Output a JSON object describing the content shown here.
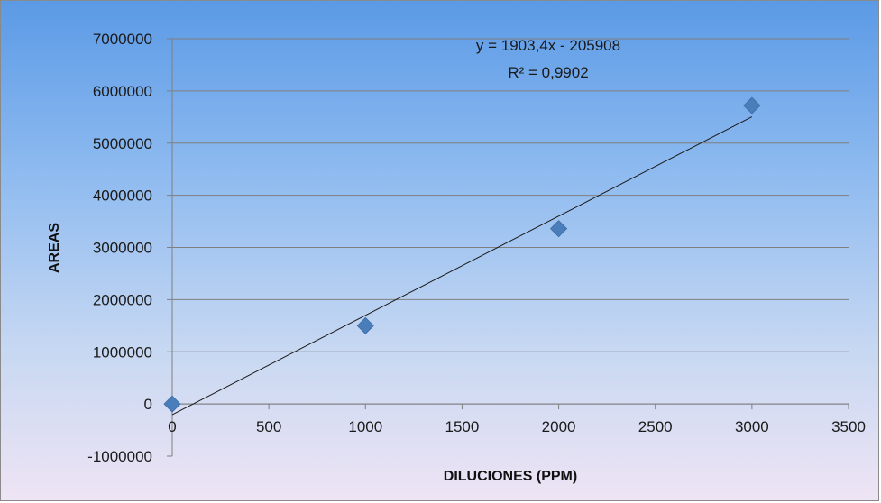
{
  "chart_data": {
    "type": "scatter",
    "xlabel": "DILUCIONES (PPM)",
    "ylabel": "AREAS",
    "xlim": [
      0,
      3500
    ],
    "ylim": [
      -1000000,
      7000000
    ],
    "x_ticks": [
      0,
      500,
      1000,
      1500,
      2000,
      2500,
      3000,
      3500
    ],
    "y_ticks": [
      -1000000,
      0,
      1000000,
      2000000,
      3000000,
      4000000,
      5000000,
      6000000,
      7000000
    ],
    "grid": "horizontal",
    "series": [
      {
        "x": [
          0,
          1000,
          2000,
          3000
        ],
        "y": [
          0,
          1500000,
          3360000,
          5720000
        ],
        "marker": "diamond",
        "color": "#4a7ebb"
      }
    ],
    "trendline": {
      "type": "linear",
      "slope": 1903.4,
      "intercept": -205908,
      "x_range": [
        0,
        3000
      ],
      "color": "#1a1a1a"
    },
    "annotations": [
      {
        "text": "y = 1903,4x - 205908"
      },
      {
        "text": "R² = 0,9902"
      }
    ]
  }
}
